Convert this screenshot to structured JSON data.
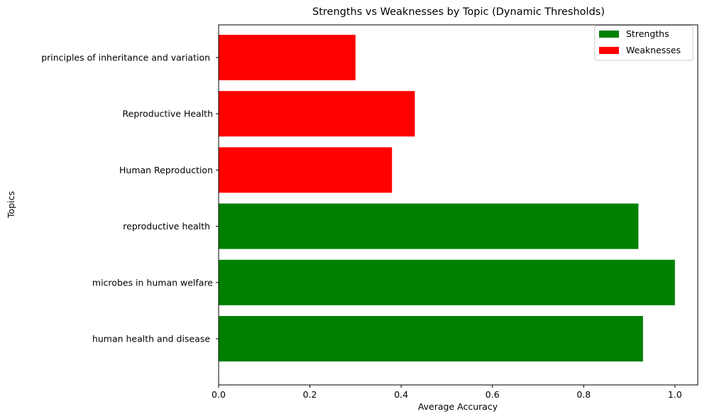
{
  "chart_data": {
    "type": "bar",
    "orientation": "horizontal",
    "title": "Strengths vs Weaknesses by Topic (Dynamic Thresholds)",
    "xlabel": "Average Accuracy",
    "ylabel": "Topics",
    "xlim": [
      0,
      1.05
    ],
    "xticks": [
      "0.0",
      "0.2",
      "0.4",
      "0.6",
      "0.8",
      "1.0"
    ],
    "grid": false,
    "legend_position": "top-right",
    "categories": [
      "human health and disease ",
      "microbes in human welfare",
      "reproductive health ",
      "Human Reproduction",
      "Reproductive Health",
      "principles of inheritance and variation "
    ],
    "values": [
      0.93,
      1.0,
      0.92,
      0.38,
      0.43,
      0.3
    ],
    "bar_series": [
      "Strengths",
      "Strengths",
      "Strengths",
      "Weaknesses",
      "Weaknesses",
      "Weaknesses"
    ],
    "series": [
      {
        "name": "Strengths",
        "color": "#008000"
      },
      {
        "name": "Weaknesses",
        "color": "#ff0000"
      }
    ]
  }
}
